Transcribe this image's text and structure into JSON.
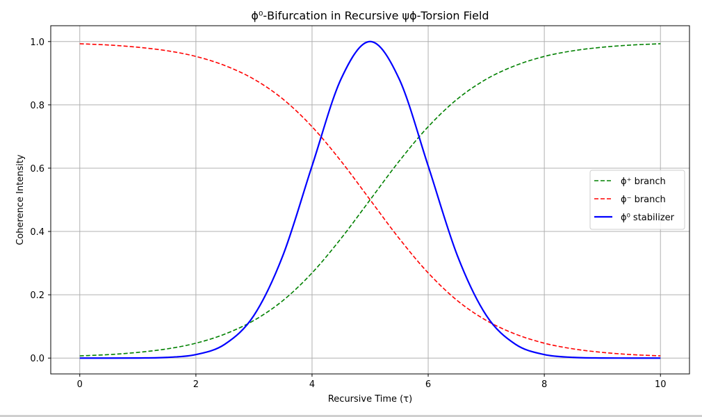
{
  "chart_data": {
    "type": "line",
    "title": "ϕ⁰-Bifurcation in Recursive ψϕ-Torsion Field",
    "xlabel": "Recursive Time (τ)",
    "ylabel": "Coherence Intensity",
    "xlim": [
      -0.5,
      10.5
    ],
    "ylim": [
      -0.05,
      1.05
    ],
    "xticks": [
      0,
      2,
      4,
      6,
      8,
      10
    ],
    "xtick_labels": [
      "0",
      "2",
      "4",
      "6",
      "8",
      "10"
    ],
    "yticks": [
      0.0,
      0.2,
      0.4,
      0.6,
      0.8,
      1.0
    ],
    "ytick_labels": [
      "0.0",
      "0.2",
      "0.4",
      "0.6",
      "0.8",
      "1.0"
    ],
    "grid": true,
    "legend_position": "center-right",
    "x": [
      0,
      0.5,
      1,
      1.5,
      2,
      2.5,
      3,
      3.5,
      4,
      4.5,
      5,
      5.5,
      6,
      6.5,
      7,
      7.5,
      8,
      8.5,
      9,
      9.5,
      10
    ],
    "series": [
      {
        "name": "ϕ⁺ branch",
        "color": "#008000",
        "style": "dashed",
        "values": [
          0.007,
          0.011,
          0.018,
          0.029,
          0.047,
          0.076,
          0.119,
          0.182,
          0.269,
          0.378,
          0.5,
          0.622,
          0.731,
          0.818,
          0.881,
          0.924,
          0.953,
          0.971,
          0.982,
          0.989,
          0.993
        ]
      },
      {
        "name": "ϕ⁻ branch",
        "color": "#ff0000",
        "style": "dashed",
        "values": [
          0.993,
          0.989,
          0.982,
          0.971,
          0.953,
          0.924,
          0.881,
          0.818,
          0.731,
          0.622,
          0.5,
          0.378,
          0.269,
          0.182,
          0.119,
          0.076,
          0.047,
          0.029,
          0.018,
          0.011,
          0.007
        ]
      },
      {
        "name": "ϕ⁰ stabilizer",
        "color": "#0000ff",
        "style": "solid",
        "values": [
          0.0,
          0.0,
          0.0003,
          0.0022,
          0.011,
          0.044,
          0.135,
          0.325,
          0.607,
          0.882,
          1.0,
          0.882,
          0.607,
          0.325,
          0.135,
          0.044,
          0.011,
          0.0022,
          0.0003,
          0.0,
          0.0
        ]
      }
    ]
  }
}
